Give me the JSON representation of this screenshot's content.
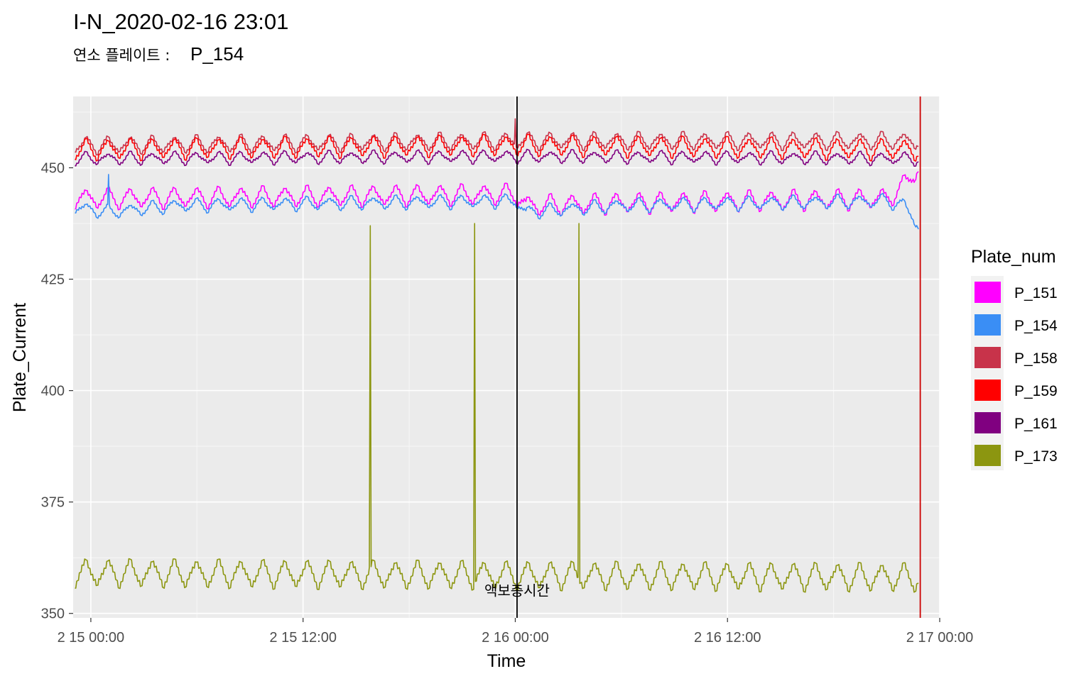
{
  "chart_data": {
    "type": "line",
    "title": "I-N_2020-02-16 23:01",
    "subtitle_label": "연소 플레이트 :",
    "subtitle_value": "P_154",
    "xlabel": "Time",
    "ylabel": "Plate_Current",
    "x_unit": "hours since 2 15 00:00",
    "xlim": [
      -1.0,
      48.0
    ],
    "ylim": [
      349,
      466
    ],
    "x_ticks": [
      {
        "value": 0,
        "label": "2 15 00:00"
      },
      {
        "value": 12,
        "label": "2 15 12:00"
      },
      {
        "value": 24,
        "label": "2 16 00:00"
      },
      {
        "value": 36,
        "label": "2 16 12:00"
      },
      {
        "value": 48,
        "label": "2 17 00:00"
      }
    ],
    "y_ticks": [
      350,
      375,
      400,
      425,
      450
    ],
    "grid": true,
    "legend": {
      "title": "Plate_num",
      "position": "right"
    },
    "time_range": [
      -0.9,
      46.8
    ],
    "series": [
      {
        "name": "P_151",
        "color": "#FF00FF",
        "base": 443.0,
        "amplitude": 2.2,
        "period": 1.25,
        "trend": [
          [
            -0.9,
            443
          ],
          [
            24,
            444
          ],
          [
            24.6,
            441.5
          ],
          [
            30,
            442
          ],
          [
            45,
            443
          ],
          [
            46,
            446
          ],
          [
            46.8,
            450
          ]
        ]
      },
      {
        "name": "P_154",
        "color": "#3A8EF5",
        "base": 441.5,
        "amplitude": 1.4,
        "period": 1.25,
        "trend": [
          [
            -0.9,
            441
          ],
          [
            1,
            440
          ],
          [
            5,
            441.5
          ],
          [
            24,
            442.5
          ],
          [
            24.6,
            440
          ],
          [
            30,
            441.5
          ],
          [
            45,
            442.5
          ],
          [
            46,
            441.5
          ],
          [
            46.8,
            437
          ]
        ]
      },
      {
        "name": "P_158",
        "color": "#C8334A",
        "base": 456.0,
        "amplitude": 1.8,
        "period": 1.25,
        "trend": [
          [
            -0.9,
            455
          ],
          [
            24,
            456
          ],
          [
            46.8,
            456
          ]
        ]
      },
      {
        "name": "P_159",
        "color": "#FF0000",
        "base": 454.5,
        "amplitude": 2.2,
        "period": 1.25,
        "trend": [
          [
            -0.9,
            454
          ],
          [
            24,
            455
          ],
          [
            46.8,
            454
          ]
        ]
      },
      {
        "name": "P_161",
        "color": "#800080",
        "base": 452.0,
        "amplitude": 1.3,
        "period": 1.25,
        "trend": [
          [
            -0.9,
            452
          ],
          [
            24,
            452.5
          ],
          [
            46.8,
            452
          ]
        ]
      },
      {
        "name": "P_173",
        "color": "#8C9610",
        "base": 359.0,
        "amplitude": 3.0,
        "period": 1.25,
        "trend": [
          [
            -0.9,
            359
          ],
          [
            46.8,
            358
          ]
        ]
      }
    ],
    "spikes": [
      {
        "series": "P_154",
        "x": 1.0,
        "y": 448.5
      },
      {
        "series": "P_158",
        "x": 24.0,
        "y": 461.0
      },
      {
        "series": "P_173",
        "x": 15.8,
        "y": 437.0
      },
      {
        "series": "P_173",
        "x": 21.7,
        "y": 437.5
      },
      {
        "series": "P_173",
        "x": 27.6,
        "y": 437.5
      }
    ],
    "annotations": [
      {
        "type": "vline",
        "x": 24.1,
        "color": "#000000",
        "label": "액보충시간",
        "label_y": 354
      },
      {
        "type": "vline",
        "x": 46.9,
        "color": "#CC0000",
        "label": ""
      }
    ]
  }
}
